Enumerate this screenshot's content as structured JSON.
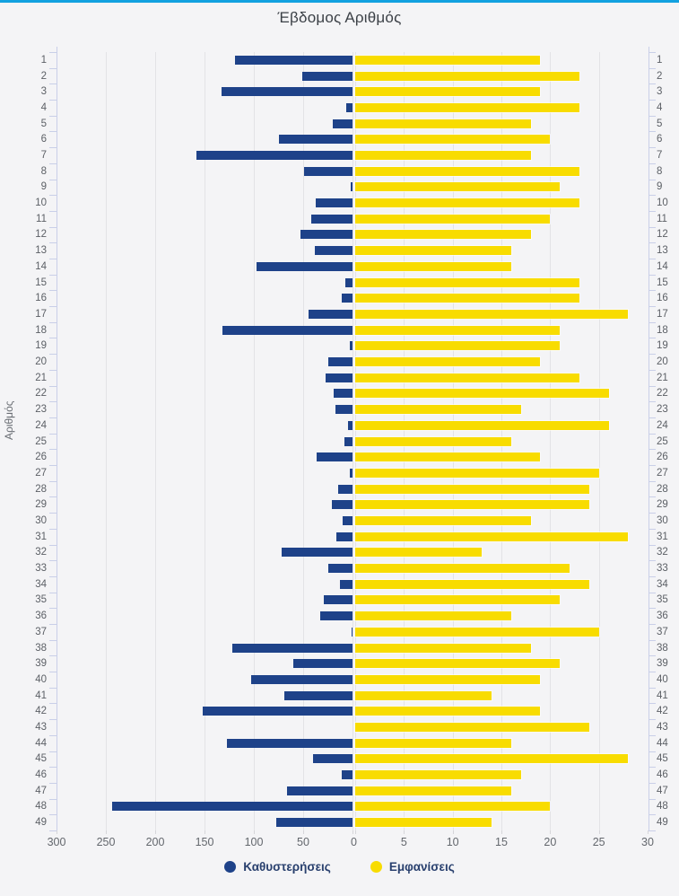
{
  "title": "Έβδομος Αριθμός",
  "y_axis_title": "Αριθμός",
  "legend": {
    "items": [
      {
        "label": "Καθυστερήσεις",
        "color": "#1e4289"
      },
      {
        "label": "Εμφανίσεις",
        "color": "#f8dc00"
      }
    ]
  },
  "colors": {
    "delay_bar": "#1e4289",
    "appear_bar": "#f8dc00",
    "top_accent": "#12a1e0",
    "background": "#f4f4f6",
    "gridline": "#e3e3e6",
    "axis": "#c9cfe8"
  },
  "chart_data": {
    "type": "bar",
    "orientation": "horizontal-diverging",
    "title": "Έβδομος Αριθμός",
    "ylabel": "Αριθμός",
    "grid": true,
    "legend_position": "bottom",
    "categories": [
      1,
      2,
      3,
      4,
      5,
      6,
      7,
      8,
      9,
      10,
      11,
      12,
      13,
      14,
      15,
      16,
      17,
      18,
      19,
      20,
      21,
      22,
      23,
      24,
      25,
      26,
      27,
      28,
      29,
      30,
      31,
      32,
      33,
      34,
      35,
      36,
      37,
      38,
      39,
      40,
      41,
      42,
      43,
      44,
      45,
      46,
      47,
      48,
      49
    ],
    "series": [
      {
        "name": "Καθυστερήσεις",
        "side": "left",
        "color": "#1e4289",
        "axis_range": [
          0,
          300
        ],
        "values": [
          119,
          51,
          133,
          6,
          20,
          75,
          158,
          49,
          2,
          37,
          42,
          53,
          38,
          97,
          7,
          11,
          45,
          132,
          3,
          25,
          27,
          19,
          17,
          5,
          8,
          36,
          3,
          15,
          21,
          10,
          16,
          72,
          25,
          13,
          29,
          33,
          1,
          122,
          60,
          103,
          69,
          152,
          0,
          127,
          40,
          11,
          66,
          244,
          77
        ]
      },
      {
        "name": "Εμφανίσεις",
        "side": "right",
        "color": "#f8dc00",
        "axis_range": [
          0,
          30
        ],
        "values": [
          19,
          23,
          19,
          23,
          18,
          20,
          18,
          23,
          21,
          23,
          20,
          18,
          16,
          16,
          23,
          23,
          28,
          21,
          21,
          19,
          23,
          26,
          17,
          26,
          16,
          19,
          25,
          24,
          24,
          18,
          28,
          13,
          22,
          24,
          21,
          16,
          25,
          18,
          21,
          19,
          14,
          19,
          24,
          16,
          28,
          17,
          16,
          20,
          14
        ]
      }
    ],
    "x_ticks_left": [
      300,
      250,
      200,
      150,
      100,
      50
    ],
    "x_tick_zero": 0,
    "x_ticks_right": [
      5,
      10,
      15,
      20,
      25,
      30
    ]
  }
}
